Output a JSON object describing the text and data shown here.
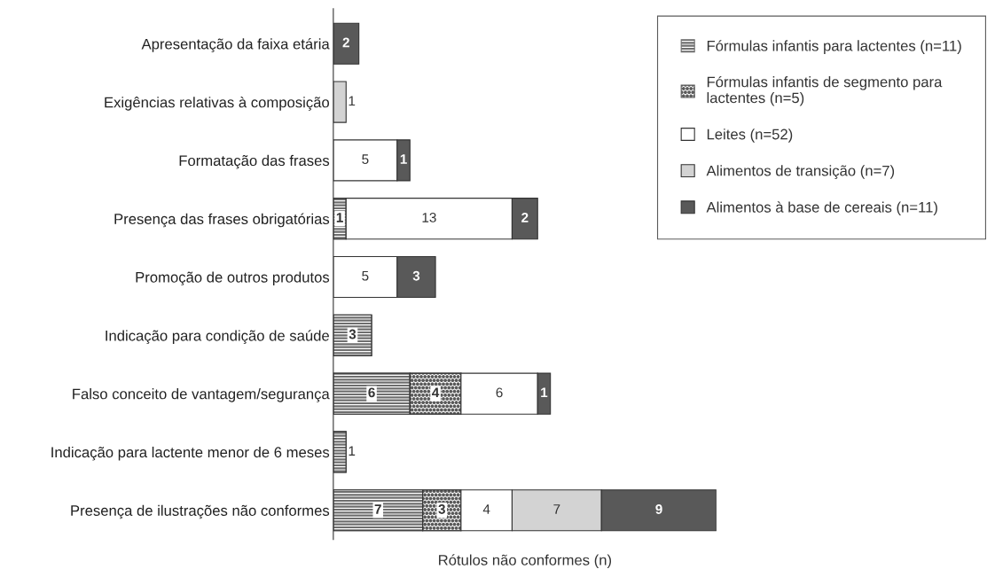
{
  "chart_data": {
    "type": "bar",
    "orientation": "horizontal",
    "stacked": true,
    "data_labels": true,
    "legend": "top right",
    "grid": false,
    "tick_labels": "y",
    "xlabel": "Rótulos não conformes (n)",
    "categories": [
      "Apresentação da faixa etária",
      "Exigências relativas à composição",
      "Formatação das frases",
      "Presença das frases obrigatórias",
      "Promoção de outros produtos",
      "Indicação para condição de saúde",
      "Falso conceito de vantagem/segurança",
      "Indicação para lactente menor de 6 meses",
      "Presença de ilustrações não conformes"
    ],
    "series": [
      {
        "name": "Fórmulas infantis para lactentes (n=11)",
        "color": "#6e6e6e",
        "values": [
          null,
          null,
          null,
          1,
          null,
          3,
          6,
          1,
          7
        ]
      },
      {
        "name": "Fórmulas infantis de segmento para\nlactentes (n=5)",
        "color": "#5a5a5a",
        "values": [
          null,
          null,
          null,
          null,
          null,
          null,
          4,
          null,
          3
        ]
      },
      {
        "name": "Leites (n=52)",
        "color": "#ffffff",
        "values": [
          null,
          null,
          5,
          13,
          5,
          null,
          6,
          null,
          4
        ]
      },
      {
        "name": "Alimentos de transição (n=7)",
        "color": "#d3d3d3",
        "values": [
          null,
          1,
          null,
          null,
          null,
          null,
          null,
          null,
          7
        ]
      },
      {
        "name": "Alimentos à base de cereais (n=11)",
        "color": "#595959",
        "values": [
          2,
          null,
          1,
          2,
          3,
          null,
          1,
          null,
          9
        ]
      }
    ]
  }
}
